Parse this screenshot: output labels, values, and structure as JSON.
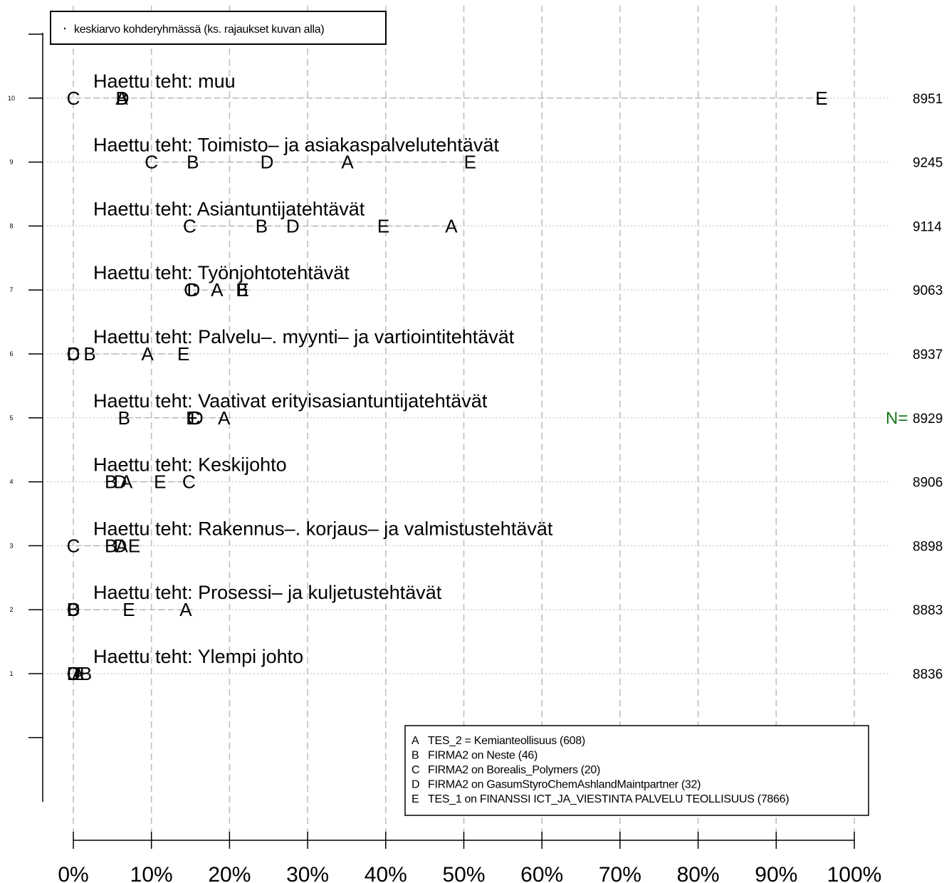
{
  "chart_data": {
    "type": "scatter",
    "title": "",
    "xlabel": "",
    "ylabel": "",
    "xlim": [
      0,
      100
    ],
    "x_ticks": [
      "0%",
      "10%",
      "20%",
      "30%",
      "40%",
      "50%",
      "60%",
      "70%",
      "80%",
      "90%",
      "100%"
    ],
    "y_ticks": [
      "1",
      "2",
      "3",
      "4",
      "5",
      "6",
      "7",
      "8",
      "9",
      "10"
    ],
    "grid": true,
    "top_legend": "keskiarvo kohderyhmässä (ks. rajaukset kuvan alla)",
    "n_label": "N=",
    "n_label_row": 5,
    "categories": [
      {
        "row": 10,
        "title": "Haettu teht:  muu",
        "n": "8951",
        "values": {
          "A": 6.2,
          "B": 6.2,
          "C": 0,
          "D": 6.3,
          "E": 95.8
        }
      },
      {
        "row": 9,
        "title": "Haettu teht: Toimisto– ja asiakaspalvelutehtävät",
        "n": "9245",
        "values": {
          "A": 35.1,
          "B": 15.3,
          "C": 10.0,
          "D": 24.8,
          "E": 50.8
        }
      },
      {
        "row": 8,
        "title": "Haettu teht: Asiantuntijatehtävät",
        "n": "9114",
        "values": {
          "A": 48.4,
          "B": 24.1,
          "C": 14.9,
          "D": 28.1,
          "E": 39.7
        }
      },
      {
        "row": 7,
        "title": "Haettu teht: Työnjohtotehtävät",
        "n": "9063",
        "values": {
          "A": 18.4,
          "B": 21.6,
          "C": 15.0,
          "D": 15.4,
          "E": 21.7
        }
      },
      {
        "row": 6,
        "title": "Haettu teht: Palvelu–. myynti– ja vartiointitehtävät",
        "n": "8937",
        "values": {
          "A": 9.5,
          "B": 2.1,
          "C": 0,
          "D": 0,
          "E": 14.1
        }
      },
      {
        "row": 5,
        "title": "Haettu teht: Vaativat erityisasiantuntijatehtävät",
        "n": "8929",
        "values": {
          "A": 19.3,
          "B": 6.5,
          "C": 15.4,
          "D": 15.8,
          "E": 15.2
        }
      },
      {
        "row": 4,
        "title": "Haettu teht: Keskijohto",
        "n": "8906",
        "values": {
          "A": 6.8,
          "B": 4.8,
          "C": 14.8,
          "D": 6.0,
          "E": 11.1
        }
      },
      {
        "row": 3,
        "title": "Haettu teht: Rakennus–. korjaus– ja valmistustehtävät",
        "n": "8898",
        "values": {
          "A": 6.2,
          "B": 4.8,
          "C": 0,
          "D": 6.0,
          "E": 7.8
        }
      },
      {
        "row": 2,
        "title": "Haettu teht: Prosessi– ja kuljetustehtävät",
        "n": "8883",
        "values": {
          "A": 14.4,
          "B": 0,
          "C": 0,
          "D": 0,
          "E": 7.1
        }
      },
      {
        "row": 1,
        "title": "Haettu teht: Ylempi johto",
        "n": "8836",
        "values": {
          "A": 0.6,
          "B": 1.6,
          "C": 0,
          "D": 0,
          "E": 0.9
        }
      }
    ],
    "legend": [
      {
        "key": "A",
        "label": "TES_2 = Kemianteollisuus (608)"
      },
      {
        "key": "B",
        "label": "FIRMA2 on Neste (46)"
      },
      {
        "key": "C",
        "label": "FIRMA2 on Borealis_Polymers (20)"
      },
      {
        "key": "D",
        "label": "FIRMA2 on GasumStyroChemAshlandMaintpartner (32)"
      },
      {
        "key": "E",
        "label": "TES_1 on FINANSSI ICT_JA_VIESTINTA PALVELU TEOLLISUUS (7866)"
      }
    ]
  }
}
